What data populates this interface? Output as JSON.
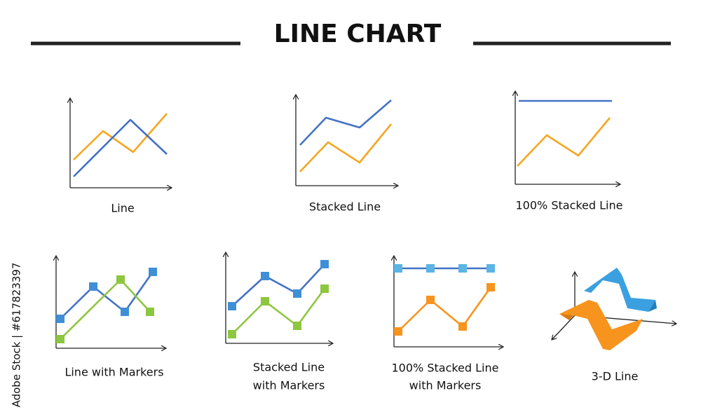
{
  "title": "LINE CHART",
  "items": [
    {
      "label": [
        "Line"
      ]
    },
    {
      "label": [
        "Stacked Line"
      ]
    },
    {
      "label": [
        "100% Stacked Line"
      ]
    },
    {
      "label": [
        "Line with Markers"
      ]
    },
    {
      "label": [
        "Stacked Line",
        "with Markers"
      ]
    },
    {
      "label": [
        "100% Stacked Line",
        "with Markers"
      ]
    },
    {
      "label": [
        "3-D Line"
      ]
    }
  ],
  "watermark": "Adobe Stock | #617823397"
}
